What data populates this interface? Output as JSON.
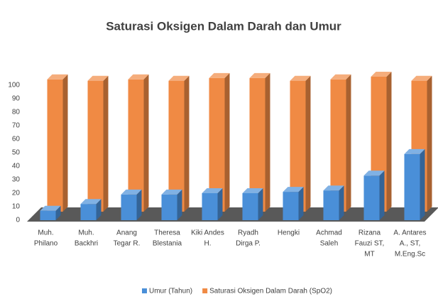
{
  "chart_data": {
    "type": "bar3d",
    "title": "Saturasi Oksigen Dalam Darah dan Umur",
    "categories": [
      [
        "Muh.",
        "Philano"
      ],
      [
        "Muh.",
        "Backhri"
      ],
      [
        "Anang",
        "Tegar R."
      ],
      [
        "Theresa",
        "Blestania"
      ],
      [
        "Kiki Andes",
        "H."
      ],
      [
        "Ryadh",
        "Dirga P."
      ],
      [
        "Hengki"
      ],
      [
        "Achmad",
        "Saleh"
      ],
      [
        "Rizana",
        "Fauzi ST,",
        "MT"
      ],
      [
        "A. Antares",
        "A., ST,",
        "M.Eng.Sc"
      ]
    ],
    "series": [
      {
        "name": "Umur (Tahun)",
        "color": "#4a8fd8",
        "values": [
          7,
          12,
          19,
          19,
          20,
          20,
          21,
          22,
          33,
          49
        ]
      },
      {
        "name": "Saturasi Oksigen Dalam Darah (SpO2)",
        "color": "#f08a44",
        "values": [
          98,
          97,
          98,
          97,
          99,
          99,
          97,
          98,
          100,
          97
        ]
      }
    ],
    "ylim": [
      0,
      100
    ],
    "yticks": [
      0,
      10,
      20,
      30,
      40,
      50,
      60,
      70,
      80,
      90,
      100
    ],
    "legend": "bottom"
  }
}
